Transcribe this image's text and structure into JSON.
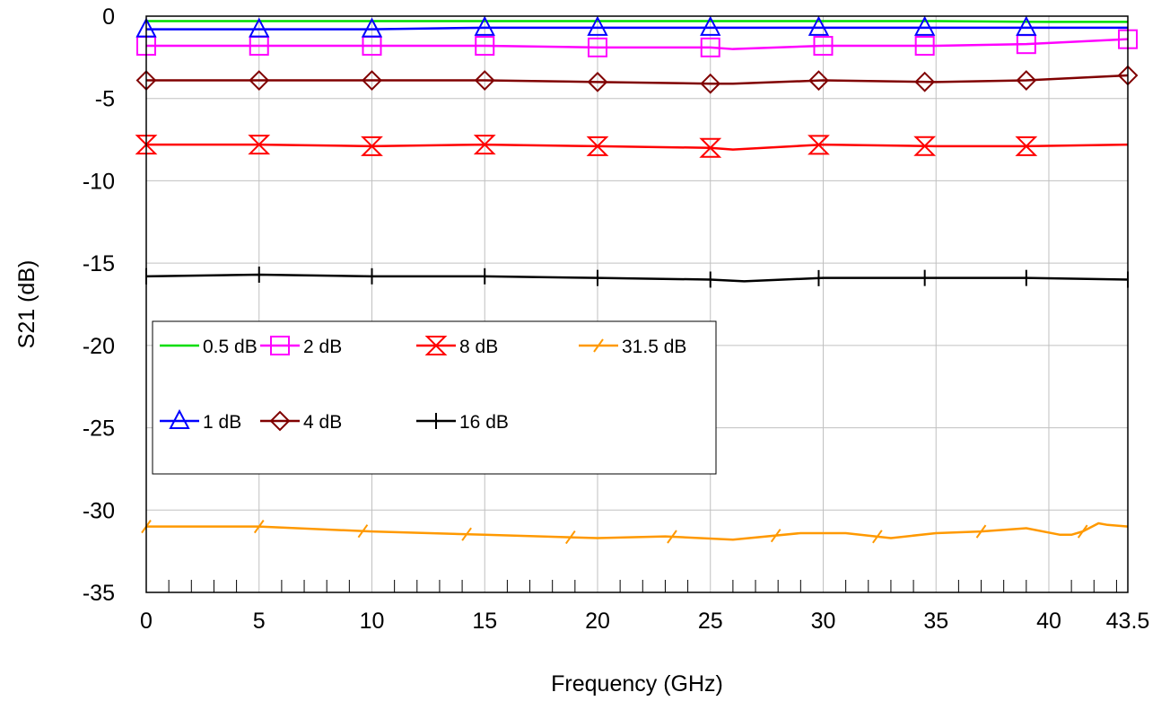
{
  "chart_data": {
    "type": "line",
    "title": "",
    "xlabel": "Frequency (GHz)",
    "ylabel": "S21 (dB)",
    "xlim": [
      0,
      43.5
    ],
    "ylim": [
      -35,
      0
    ],
    "x_ticks": [
      0,
      5,
      10,
      15,
      20,
      25,
      30,
      35,
      40,
      43.5
    ],
    "x_tick_labels": [
      "0",
      "5",
      "10",
      "15",
      "20",
      "25",
      "30",
      "35",
      "40",
      "43.5"
    ],
    "y_ticks": [
      0,
      -5,
      -10,
      -15,
      -20,
      -25,
      -30,
      -35
    ],
    "y_tick_labels": [
      "0",
      "-5",
      "-10",
      "-15",
      "-20",
      "-25",
      "-30",
      "-35"
    ],
    "grid": true,
    "legend_position": "left-middle",
    "series": [
      {
        "name": "0.5 dB",
        "color": "#00dd00",
        "marker": "none",
        "x": [
          0,
          5,
          10,
          15,
          20,
          25,
          30,
          35,
          40,
          43.5
        ],
        "y": [
          -0.3,
          -0.3,
          -0.3,
          -0.3,
          -0.3,
          -0.3,
          -0.3,
          -0.3,
          -0.35,
          -0.35
        ],
        "marker_x": []
      },
      {
        "name": "2 dB",
        "color": "#ff00ff",
        "marker": "square",
        "x": [
          0,
          5,
          10,
          15,
          20,
          25,
          26,
          30,
          35,
          39,
          43.5
        ],
        "y": [
          -1.8,
          -1.8,
          -1.8,
          -1.8,
          -1.9,
          -1.9,
          -2.0,
          -1.8,
          -1.8,
          -1.7,
          -1.4
        ],
        "marker_x": [
          0,
          5,
          10,
          15,
          20,
          25,
          30,
          34.5,
          39,
          43.5
        ]
      },
      {
        "name": "8 dB",
        "color": "#ff0000",
        "marker": "hourglass",
        "x": [
          0,
          5,
          10,
          15,
          20,
          25,
          26,
          30,
          35,
          39,
          43.5
        ],
        "y": [
          -7.8,
          -7.8,
          -7.9,
          -7.8,
          -7.9,
          -8.0,
          -8.1,
          -7.8,
          -7.9,
          -7.9,
          -7.8
        ],
        "marker_x": [
          0,
          5,
          10,
          15,
          20,
          25,
          29.8,
          34.5,
          39
        ]
      },
      {
        "name": "31.5 dB",
        "color": "#ff9900",
        "marker": "slash",
        "x": [
          0,
          5,
          10,
          15,
          20,
          23,
          26,
          29,
          31,
          33,
          35,
          37,
          39,
          40.5,
          41,
          41.5,
          42.2,
          42.6,
          43.5
        ],
        "y": [
          -31.0,
          -31.0,
          -31.3,
          -31.5,
          -31.7,
          -31.6,
          -31.8,
          -31.4,
          -31.4,
          -31.7,
          -31.4,
          -31.3,
          -31.1,
          -31.5,
          -31.5,
          -31.3,
          -30.8,
          -30.9,
          -31.0
        ],
        "marker_x": [
          0,
          5,
          9.6,
          14.2,
          18.8,
          23.3,
          27.9,
          32.4,
          37,
          41.5
        ]
      },
      {
        "name": "1 dB",
        "color": "#0000ff",
        "marker": "triangle",
        "x": [
          0,
          5,
          10,
          15,
          20,
          25,
          30,
          35,
          39,
          43.5
        ],
        "y": [
          -0.8,
          -0.8,
          -0.8,
          -0.7,
          -0.7,
          -0.7,
          -0.7,
          -0.7,
          -0.7,
          -0.7
        ],
        "marker_x": [
          0,
          5,
          10,
          15,
          20,
          25,
          29.8,
          34.5,
          39
        ]
      },
      {
        "name": "4 dB",
        "color": "#800000",
        "marker": "diamond",
        "x": [
          0,
          5,
          10,
          15,
          20,
          25,
          26,
          30,
          35,
          39,
          43.5
        ],
        "y": [
          -3.9,
          -3.9,
          -3.9,
          -3.9,
          -4.0,
          -4.1,
          -4.1,
          -3.9,
          -4.0,
          -3.9,
          -3.6
        ],
        "marker_x": [
          0,
          5,
          10,
          15,
          20,
          25,
          29.8,
          34.5,
          39,
          43.5
        ]
      },
      {
        "name": "16 dB",
        "color": "#000000",
        "marker": "plus",
        "x": [
          0,
          5,
          10,
          15,
          20,
          25,
          26.5,
          30,
          35,
          39,
          43.5
        ],
        "y": [
          -15.8,
          -15.7,
          -15.8,
          -15.8,
          -15.9,
          -16.0,
          -16.1,
          -15.9,
          -15.9,
          -15.9,
          -16.0
        ],
        "marker_x": [
          0,
          5,
          10,
          15,
          20,
          25,
          29.8,
          34.5,
          39,
          43.5
        ]
      }
    ]
  }
}
